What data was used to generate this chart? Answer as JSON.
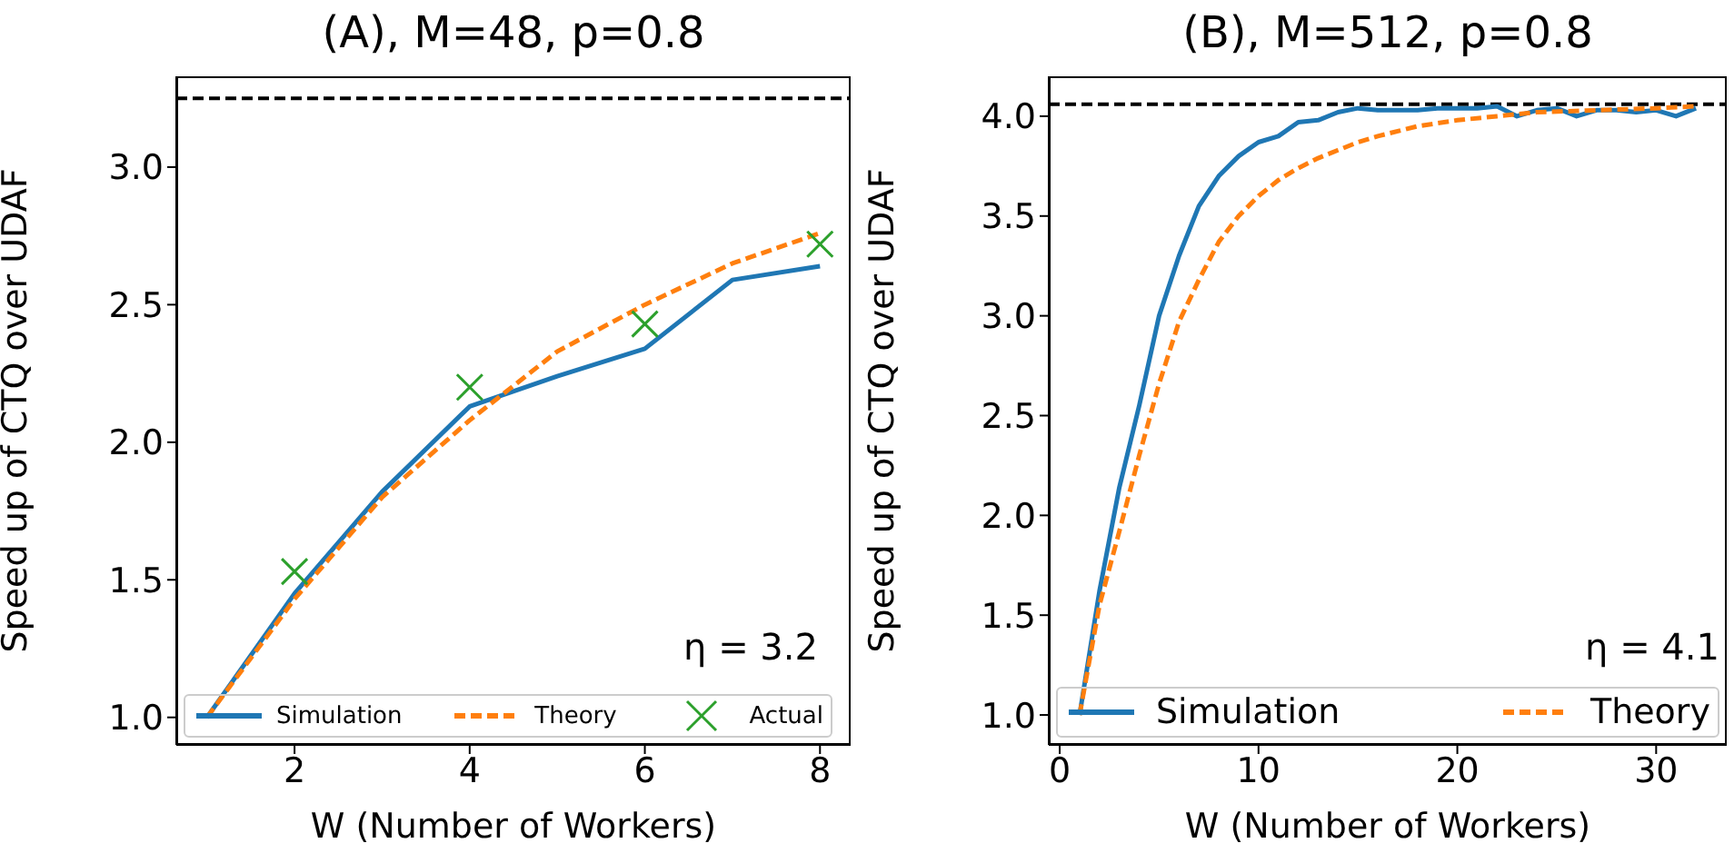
{
  "chart_data": [
    {
      "type": "line",
      "title": "(A), M=48, p=0.8",
      "xlabel": "W (Number of Workers)",
      "ylabel": "Speed up of CTQ over UDAF",
      "x": [
        1,
        2,
        3,
        4,
        5,
        6,
        7,
        8
      ],
      "series": [
        {
          "name": "Simulation",
          "color": "#1f77b4",
          "line_style": "solid",
          "marker": "none",
          "values": [
            1.0,
            1.45,
            1.82,
            2.13,
            2.24,
            2.34,
            2.59,
            2.64
          ]
        },
        {
          "name": "Theory",
          "color": "#ff7f0e",
          "line_style": "dashed",
          "marker": "none",
          "values": [
            1.0,
            1.43,
            1.8,
            2.08,
            2.33,
            2.5,
            2.65,
            2.76
          ]
        },
        {
          "name": "Actual",
          "type": "scatter",
          "color": "#2ca02c",
          "marker": "cross",
          "x": [
            2,
            4,
            6,
            8
          ],
          "values": [
            1.53,
            2.2,
            2.43,
            2.72
          ]
        }
      ],
      "xlim": [
        0.65,
        8.35
      ],
      "xticks": [
        2,
        4,
        6,
        8
      ],
      "ylim": [
        0.9,
        3.33
      ],
      "yticks": [
        {
          "value": 1,
          "label": "1.0"
        },
        1.5,
        {
          "value": 2,
          "label": "2.0"
        },
        2.5,
        {
          "value": 3,
          "label": "3.0"
        }
      ],
      "ref_lines": [
        {
          "axis": "y",
          "value": 3.25,
          "color": "#000000",
          "line_style": "dashed"
        }
      ],
      "annotations": [
        "η = 3.2"
      ],
      "legend": "bottom",
      "grid": false
    },
    {
      "type": "line",
      "title": "(B), M=512, p=0.8",
      "xlabel": "W (Number of Workers)",
      "ylabel": "Speed up of CTQ over UDAF",
      "series": [
        {
          "name": "Simulation",
          "color": "#1f77b4",
          "line_style": "solid",
          "marker": "none",
          "x": [
            1,
            2,
            3,
            4,
            5,
            6,
            7,
            8,
            9,
            10,
            11,
            12,
            13,
            14,
            15,
            16,
            17,
            18,
            19,
            20,
            21,
            22,
            23,
            24,
            25,
            26,
            27,
            28,
            29,
            30,
            31,
            32
          ],
          "values": [
            1.0,
            1.62,
            2.14,
            2.55,
            3.0,
            3.3,
            3.55,
            3.7,
            3.8,
            3.87,
            3.9,
            3.97,
            3.98,
            4.02,
            4.04,
            4.03,
            4.03,
            4.03,
            4.04,
            4.04,
            4.04,
            4.05,
            4.0,
            4.03,
            4.04,
            4.0,
            4.03,
            4.03,
            4.02,
            4.03,
            4.0,
            4.04
          ]
        },
        {
          "name": "Theory",
          "color": "#ff7f0e",
          "line_style": "dashed",
          "marker": "none",
          "x": [
            1,
            2,
            3,
            4,
            5,
            6,
            7,
            8,
            9,
            10,
            11,
            12,
            13,
            14,
            15,
            16,
            18,
            20,
            22,
            24,
            27,
            30,
            32
          ],
          "values": [
            1.0,
            1.55,
            1.92,
            2.3,
            2.66,
            2.97,
            3.18,
            3.37,
            3.5,
            3.6,
            3.68,
            3.74,
            3.79,
            3.83,
            3.87,
            3.9,
            3.95,
            3.98,
            4.0,
            4.02,
            4.03,
            4.04,
            4.05
          ]
        }
      ],
      "xlim": [
        -0.55,
        33.55
      ],
      "xticks": [
        0,
        10,
        20,
        30
      ],
      "ylim": [
        0.85,
        4.2
      ],
      "yticks": [
        {
          "value": 1,
          "label": "1.0"
        },
        1.5,
        {
          "value": 2,
          "label": "2.0"
        },
        2.5,
        {
          "value": 3,
          "label": "3.0"
        },
        3.5,
        {
          "value": 4,
          "label": "4.0"
        }
      ],
      "ref_lines": [
        {
          "axis": "y",
          "value": 4.06,
          "color": "#000000",
          "line_style": "dashed"
        }
      ],
      "annotations": [
        "η = 4.1"
      ],
      "legend": "bottom",
      "grid": false
    }
  ]
}
